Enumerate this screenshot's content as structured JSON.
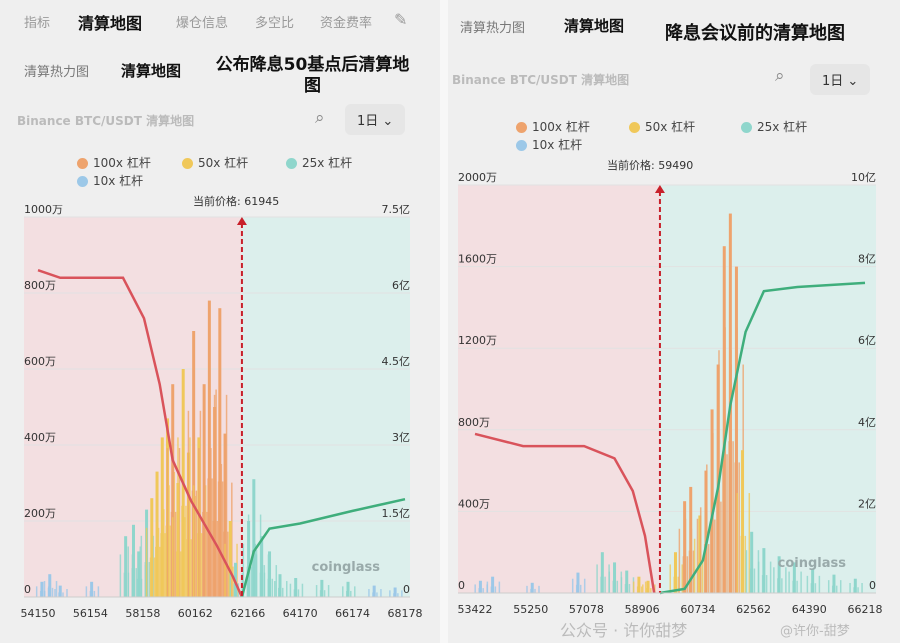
{
  "left": {
    "top_tabs": [
      "指标",
      "清算地图",
      "爆仓信息",
      "多空比",
      "资金费率"
    ],
    "active_top_tab": 1,
    "sub_tabs": [
      "清算热力图",
      "清算地图"
    ],
    "headline": "公布降息50基点后清算地图",
    "pair_title": "Binance BTC/USDT 清算地图",
    "range": "1日",
    "current_price_label": "当前价格: 61945"
  },
  "right": {
    "sub_tabs": [
      "清算热力图",
      "清算地图"
    ],
    "headline": "降息会议前的清算地图",
    "pair_title": "Binance BTC/USDT 清算地图",
    "range": "1日",
    "current_price_label": "当前价格: 59490"
  },
  "legend": [
    {
      "label": "100x 杠杆",
      "color": "#eea36d"
    },
    {
      "label": "50x 杠杆",
      "color": "#f0c85a"
    },
    {
      "label": "25x 杠杆",
      "color": "#8fd6cc"
    },
    {
      "label": "10x 杠杆",
      "color": "#9cc8e8"
    }
  ],
  "watermark": {
    "brand": "coinglass",
    "account": "公众号 · 许你甜梦",
    "handle": "@许你-甜梦"
  },
  "chart_data": [
    {
      "type": "bar",
      "xlim": [
        54150,
        68178
      ],
      "x_ticks": [
        "54150",
        "56154",
        "58158",
        "60162",
        "62166",
        "64170",
        "66174",
        "68178"
      ],
      "y_left_ticks": [
        "0",
        "200万",
        "400万",
        "600万",
        "800万",
        "1000万"
      ],
      "y_left_lim": [
        0,
        1000
      ],
      "y_right_ticks": [
        "0",
        "1.5亿",
        "3亿",
        "4.5亿",
        "6亿",
        "7.5亿"
      ],
      "y_right_lim": [
        0,
        7.5
      ],
      "current_price": 61945,
      "colors": {
        "100x": "#eea36d",
        "50x": "#f0c85a",
        "25x": "#8fd6cc",
        "10x": "#9cc8e8",
        "short_cum": "#d9535b",
        "long_cum": "#3fae7c",
        "price_line": "#c8202a"
      },
      "bars": [
        [
          54300,
          40,
          "10x"
        ],
        [
          54600,
          60,
          "10x"
        ],
        [
          55000,
          30,
          "10x"
        ],
        [
          56200,
          40,
          "10x"
        ],
        [
          57500,
          160,
          "25x"
        ],
        [
          57800,
          190,
          "25x"
        ],
        [
          58000,
          120,
          "25x"
        ],
        [
          58300,
          230,
          "25x"
        ],
        [
          58500,
          260,
          "50x"
        ],
        [
          58700,
          330,
          "50x"
        ],
        [
          58900,
          420,
          "50x"
        ],
        [
          59100,
          470,
          "50x"
        ],
        [
          59300,
          560,
          "100x"
        ],
        [
          59500,
          300,
          "50x"
        ],
        [
          59700,
          600,
          "50x"
        ],
        [
          59900,
          380,
          "50x"
        ],
        [
          60100,
          700,
          "100x"
        ],
        [
          60300,
          420,
          "50x"
        ],
        [
          60500,
          560,
          "100x"
        ],
        [
          60700,
          780,
          "100x"
        ],
        [
          60900,
          500,
          "100x"
        ],
        [
          61100,
          760,
          "100x"
        ],
        [
          61300,
          430,
          "100x"
        ],
        [
          61500,
          200,
          "50x"
        ],
        [
          61700,
          90,
          "25x"
        ],
        [
          62200,
          200,
          "25x"
        ],
        [
          62400,
          310,
          "25x"
        ],
        [
          62700,
          160,
          "25x"
        ],
        [
          63000,
          120,
          "25x"
        ],
        [
          63400,
          60,
          "25x"
        ],
        [
          64000,
          50,
          "25x"
        ],
        [
          65000,
          45,
          "25x"
        ],
        [
          66000,
          40,
          "25x"
        ],
        [
          67000,
          30,
          "10x"
        ],
        [
          67800,
          25,
          "10x"
        ]
      ],
      "short_cumulative": [
        [
          54150,
          6.45
        ],
        [
          55000,
          6.3
        ],
        [
          57400,
          6.3
        ],
        [
          58200,
          5.5
        ],
        [
          58800,
          4.2
        ],
        [
          59300,
          2.7
        ],
        [
          60000,
          1.9
        ],
        [
          61000,
          1.0
        ],
        [
          61600,
          0.4
        ],
        [
          61945,
          0
        ]
      ],
      "long_cumulative": [
        [
          61945,
          0
        ],
        [
          62400,
          0.9
        ],
        [
          63000,
          1.35
        ],
        [
          64170,
          1.45
        ],
        [
          66174,
          1.7
        ],
        [
          68178,
          1.93
        ]
      ]
    },
    {
      "type": "bar",
      "xlim": [
        53422,
        66218
      ],
      "x_ticks": [
        "53422",
        "55250",
        "57078",
        "58906",
        "60734",
        "62562",
        "64390",
        "66218"
      ],
      "y_left_ticks": [
        "0",
        "400万",
        "800万",
        "1200万",
        "1600万",
        "2000万"
      ],
      "y_left_lim": [
        0,
        2000
      ],
      "y_right_ticks": [
        "0",
        "2亿",
        "4亿",
        "6亿",
        "8亿",
        "10亿"
      ],
      "y_right_lim": [
        0,
        10
      ],
      "current_price": 59490,
      "colors": {
        "100x": "#eea36d",
        "50x": "#f0c85a",
        "25x": "#8fd6cc",
        "10x": "#9cc8e8",
        "short_cum": "#d9535b",
        "long_cum": "#3fae7c",
        "price_line": "#c8202a"
      },
      "bars": [
        [
          53600,
          60,
          "10x"
        ],
        [
          54000,
          80,
          "10x"
        ],
        [
          55300,
          50,
          "10x"
        ],
        [
          56800,
          100,
          "10x"
        ],
        [
          57600,
          200,
          "25x"
        ],
        [
          58000,
          150,
          "25x"
        ],
        [
          58400,
          110,
          "25x"
        ],
        [
          58800,
          80,
          "50x"
        ],
        [
          59100,
          60,
          "50x"
        ],
        [
          60000,
          200,
          "50x"
        ],
        [
          60300,
          450,
          "100x"
        ],
        [
          60500,
          520,
          "100x"
        ],
        [
          60800,
          380,
          "50x"
        ],
        [
          61000,
          600,
          "100x"
        ],
        [
          61200,
          900,
          "100x"
        ],
        [
          61400,
          1120,
          "100x"
        ],
        [
          61600,
          1700,
          "100x"
        ],
        [
          61800,
          1860,
          "100x"
        ],
        [
          62000,
          1600,
          "100x"
        ],
        [
          62200,
          700,
          "50x"
        ],
        [
          62500,
          300,
          "25x"
        ],
        [
          62900,
          220,
          "25x"
        ],
        [
          63400,
          180,
          "25x"
        ],
        [
          63900,
          150,
          "25x"
        ],
        [
          64500,
          120,
          "25x"
        ],
        [
          65200,
          90,
          "25x"
        ],
        [
          65900,
          70,
          "25x"
        ]
      ],
      "short_cumulative": [
        [
          53422,
          3.9
        ],
        [
          55000,
          3.6
        ],
        [
          57000,
          3.6
        ],
        [
          58000,
          3.3
        ],
        [
          58600,
          2.5
        ],
        [
          59000,
          1.4
        ],
        [
          59300,
          0
        ]
      ],
      "long_cumulative": [
        [
          59490,
          0
        ],
        [
          60300,
          0.1
        ],
        [
          60900,
          0.8
        ],
        [
          61400,
          2.6
        ],
        [
          61800,
          4.6
        ],
        [
          62300,
          6.4
        ],
        [
          62900,
          7.4
        ],
        [
          64000,
          7.5
        ],
        [
          66218,
          7.6
        ]
      ]
    }
  ]
}
